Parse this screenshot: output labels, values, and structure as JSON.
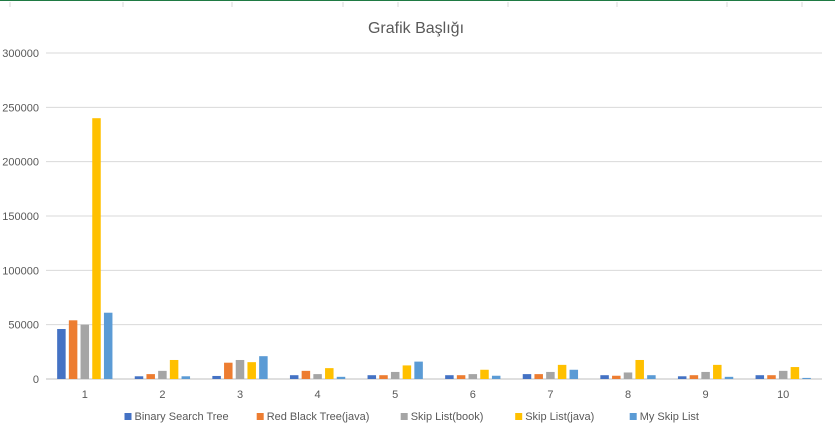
{
  "chart_data": {
    "type": "bar",
    "title": "Grafik Başlığı",
    "xlabel": "",
    "ylabel": "",
    "categories": [
      "1",
      "2",
      "3",
      "4",
      "5",
      "6",
      "7",
      "8",
      "9",
      "10"
    ],
    "ylim": [
      0,
      300000
    ],
    "yticks": [
      "0",
      "50000",
      "100000",
      "150000",
      "200000",
      "250000",
      "300000"
    ],
    "grid": true,
    "legend_position": "bottom",
    "series": [
      {
        "name": "Binary Search Tree",
        "color": "#4472C4",
        "values": [
          46000,
          2500,
          2800,
          3500,
          3500,
          3500,
          4500,
          3500,
          2500,
          3500
        ]
      },
      {
        "name": "Red Black Tree(java)",
        "color": "#ED7D31",
        "values": [
          54000,
          4500,
          15000,
          7500,
          3500,
          3500,
          4500,
          3000,
          3500,
          3500
        ]
      },
      {
        "name": "Skip List(book)",
        "color": "#A5A5A5",
        "values": [
          50000,
          7500,
          17500,
          4500,
          6500,
          4500,
          6500,
          6000,
          6500,
          7500
        ]
      },
      {
        "name": "Skip List(java)",
        "color": "#FFC000",
        "values": [
          240000,
          17500,
          15500,
          10000,
          12500,
          8500,
          13000,
          17500,
          13000,
          11000
        ]
      },
      {
        "name": "My Skip List",
        "color": "#5B9BD5",
        "values": [
          61000,
          2500,
          21000,
          2000,
          16000,
          3000,
          8500,
          3500,
          2000,
          1000
        ]
      }
    ]
  }
}
